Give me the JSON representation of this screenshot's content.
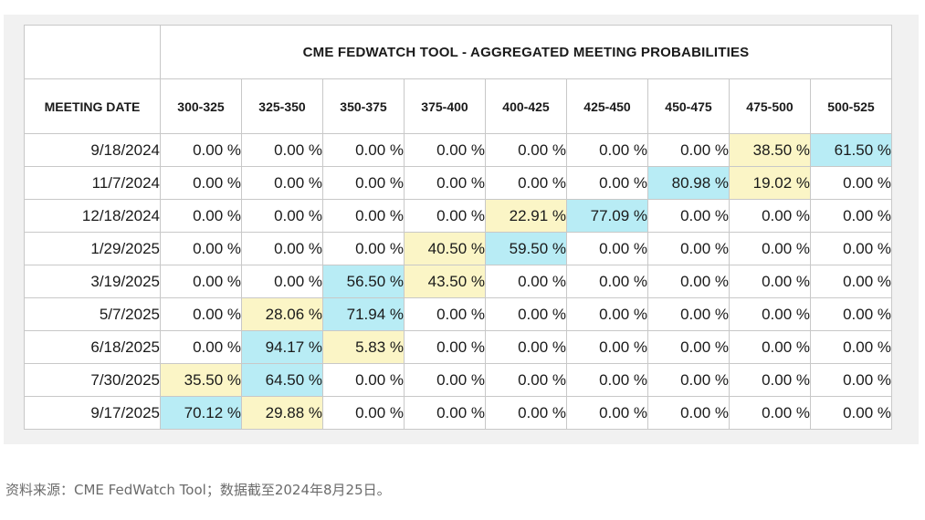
{
  "table": {
    "title": "CME FEDWATCH TOOL - AGGREGATED MEETING PROBABILITIES",
    "date_header": "MEETING DATE",
    "colors": {
      "highest": "#b8ecf5",
      "second": "#fbf5c6"
    }
  },
  "source_note": "资料来源：CME FedWatch Tool；数据截至2024年8月25日。",
  "chart_data": {
    "type": "table",
    "title": "CME FEDWATCH TOOL - AGGREGATED MEETING PROBABILITIES",
    "row_header": "MEETING DATE",
    "columns": [
      "300-325",
      "325-350",
      "350-375",
      "375-400",
      "400-425",
      "425-450",
      "450-475",
      "475-500",
      "500-525"
    ],
    "rows": [
      {
        "date": "9/18/2024",
        "values": [
          "0.00 %",
          "0.00 %",
          "0.00 %",
          "0.00 %",
          "0.00 %",
          "0.00 %",
          "0.00 %",
          "38.50 %",
          "61.50 %"
        ]
      },
      {
        "date": "11/7/2024",
        "values": [
          "0.00 %",
          "0.00 %",
          "0.00 %",
          "0.00 %",
          "0.00 %",
          "0.00 %",
          "80.98 %",
          "19.02 %",
          "0.00 %"
        ]
      },
      {
        "date": "12/18/2024",
        "values": [
          "0.00 %",
          "0.00 %",
          "0.00 %",
          "0.00 %",
          "22.91 %",
          "77.09 %",
          "0.00 %",
          "0.00 %",
          "0.00 %"
        ]
      },
      {
        "date": "1/29/2025",
        "values": [
          "0.00 %",
          "0.00 %",
          "0.00 %",
          "40.50 %",
          "59.50 %",
          "0.00 %",
          "0.00 %",
          "0.00 %",
          "0.00 %"
        ]
      },
      {
        "date": "3/19/2025",
        "values": [
          "0.00 %",
          "0.00 %",
          "56.50 %",
          "43.50 %",
          "0.00 %",
          "0.00 %",
          "0.00 %",
          "0.00 %",
          "0.00 %"
        ]
      },
      {
        "date": "5/7/2025",
        "values": [
          "0.00 %",
          "28.06 %",
          "71.94 %",
          "0.00 %",
          "0.00 %",
          "0.00 %",
          "0.00 %",
          "0.00 %",
          "0.00 %"
        ]
      },
      {
        "date": "6/18/2025",
        "values": [
          "0.00 %",
          "94.17 %",
          "5.83 %",
          "0.00 %",
          "0.00 %",
          "0.00 %",
          "0.00 %",
          "0.00 %",
          "0.00 %"
        ]
      },
      {
        "date": "7/30/2025",
        "values": [
          "35.50 %",
          "64.50 %",
          "0.00 %",
          "0.00 %",
          "0.00 %",
          "0.00 %",
          "0.00 %",
          "0.00 %",
          "0.00 %"
        ]
      },
      {
        "date": "9/17/2025",
        "values": [
          "70.12 %",
          "29.88 %",
          "0.00 %",
          "0.00 %",
          "0.00 %",
          "0.00 %",
          "0.00 %",
          "0.00 %",
          "0.00 %"
        ]
      }
    ]
  }
}
